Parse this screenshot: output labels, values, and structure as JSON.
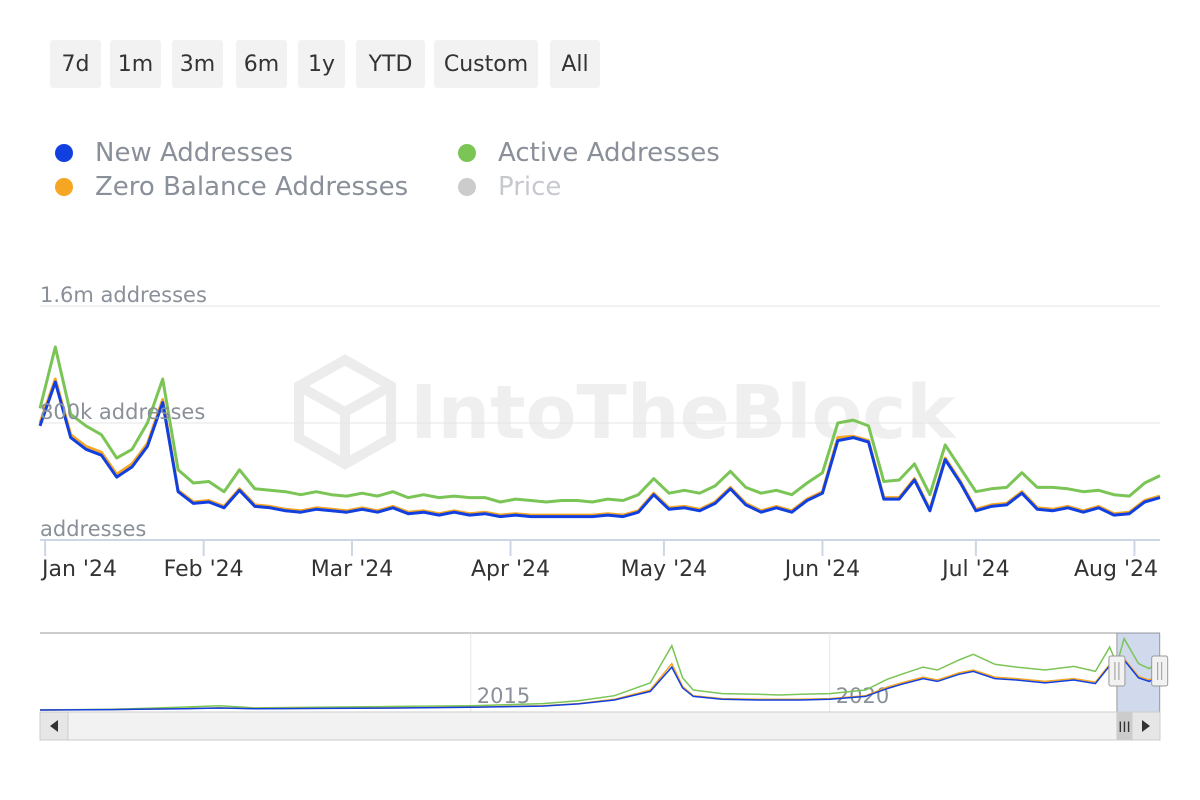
{
  "range_buttons": [
    "7d",
    "1m",
    "3m",
    "6m",
    "1y",
    "YTD",
    "Custom",
    "All"
  ],
  "legend": [
    {
      "label": "New Addresses",
      "color": "#1240e0",
      "visible": true
    },
    {
      "label": "Active Addresses",
      "color": "#7ac555",
      "visible": true
    },
    {
      "label": "Zero Balance Addresses",
      "color": "#f5a623",
      "visible": true
    },
    {
      "label": "Price",
      "color": "#cccccc",
      "visible": false
    }
  ],
  "watermark": "IntoTheBlock",
  "chart_data": {
    "type": "line",
    "y_tick_labels": [
      "1.6m addresses",
      "800k addresses",
      "addresses"
    ],
    "y_ticks": [
      1600000,
      800000,
      0
    ],
    "ylim": [
      0,
      1600000
    ],
    "x_tick_labels": [
      "Jan '24",
      "Feb '24",
      "Mar '24",
      "Apr '24",
      "May '24",
      "Jun '24",
      "Jul '24",
      "Aug '24"
    ],
    "x_ticks": [
      "2024-01-01",
      "2024-02-01",
      "2024-03-01",
      "2024-04-01",
      "2024-05-01",
      "2024-06-01",
      "2024-07-01",
      "2024-08-01"
    ],
    "xlim": [
      "2023-12-31",
      "2024-08-06"
    ],
    "x": [
      "2023-12-31",
      "2024-01-03",
      "2024-01-06",
      "2024-01-09",
      "2024-01-12",
      "2024-01-15",
      "2024-01-18",
      "2024-01-21",
      "2024-01-24",
      "2024-01-27",
      "2024-01-30",
      "2024-02-02",
      "2024-02-05",
      "2024-02-08",
      "2024-02-11",
      "2024-02-14",
      "2024-02-17",
      "2024-02-20",
      "2024-02-23",
      "2024-02-26",
      "2024-02-29",
      "2024-03-03",
      "2024-03-06",
      "2024-03-09",
      "2024-03-12",
      "2024-03-15",
      "2024-03-18",
      "2024-03-21",
      "2024-03-24",
      "2024-03-27",
      "2024-03-30",
      "2024-04-02",
      "2024-04-05",
      "2024-04-08",
      "2024-04-11",
      "2024-04-14",
      "2024-04-17",
      "2024-04-20",
      "2024-04-23",
      "2024-04-26",
      "2024-04-29",
      "2024-05-02",
      "2024-05-05",
      "2024-05-08",
      "2024-05-11",
      "2024-05-14",
      "2024-05-17",
      "2024-05-20",
      "2024-05-23",
      "2024-05-26",
      "2024-05-29",
      "2024-06-01",
      "2024-06-04",
      "2024-06-07",
      "2024-06-10",
      "2024-06-13",
      "2024-06-16",
      "2024-06-19",
      "2024-06-22",
      "2024-06-25",
      "2024-06-28",
      "2024-07-01",
      "2024-07-04",
      "2024-07-07",
      "2024-07-10",
      "2024-07-13",
      "2024-07-16",
      "2024-07-19",
      "2024-07-22",
      "2024-07-25",
      "2024-07-28",
      "2024-07-31",
      "2024-08-03",
      "2024-08-06"
    ],
    "series": [
      {
        "name": "Active Addresses",
        "color": "#7ac555",
        "values": [
          900000,
          1320000,
          860000,
          780000,
          720000,
          560000,
          620000,
          800000,
          1100000,
          480000,
          390000,
          400000,
          330000,
          480000,
          350000,
          340000,
          330000,
          310000,
          330000,
          310000,
          300000,
          320000,
          300000,
          330000,
          290000,
          310000,
          290000,
          300000,
          290000,
          290000,
          260000,
          280000,
          270000,
          260000,
          270000,
          270000,
          260000,
          280000,
          270000,
          310000,
          420000,
          320000,
          340000,
          320000,
          370000,
          470000,
          360000,
          320000,
          340000,
          310000,
          390000,
          460000,
          800000,
          820000,
          780000,
          400000,
          410000,
          520000,
          310000,
          650000,
          490000,
          330000,
          350000,
          360000,
          460000,
          360000,
          360000,
          350000,
          330000,
          340000,
          310000,
          300000,
          390000,
          440000
        ]
      },
      {
        "name": "Zero Balance Addresses",
        "color": "#f5a623",
        "values": [
          800000,
          1100000,
          720000,
          640000,
          600000,
          450000,
          520000,
          660000,
          960000,
          340000,
          260000,
          270000,
          230000,
          350000,
          240000,
          230000,
          210000,
          200000,
          220000,
          210000,
          200000,
          220000,
          200000,
          230000,
          190000,
          200000,
          180000,
          200000,
          180000,
          190000,
          170000,
          180000,
          170000,
          170000,
          170000,
          170000,
          170000,
          180000,
          170000,
          200000,
          320000,
          220000,
          230000,
          210000,
          260000,
          360000,
          250000,
          200000,
          230000,
          200000,
          280000,
          330000,
          700000,
          710000,
          680000,
          290000,
          290000,
          420000,
          210000,
          560000,
          400000,
          210000,
          240000,
          250000,
          330000,
          220000,
          210000,
          230000,
          200000,
          230000,
          180000,
          190000,
          270000,
          300000
        ]
      },
      {
        "name": "New Addresses",
        "color": "#1240e0",
        "values": [
          780000,
          1080000,
          700000,
          620000,
          580000,
          430000,
          500000,
          640000,
          940000,
          330000,
          250000,
          260000,
          220000,
          340000,
          230000,
          220000,
          200000,
          190000,
          210000,
          200000,
          190000,
          210000,
          190000,
          220000,
          180000,
          190000,
          170000,
          190000,
          170000,
          180000,
          160000,
          170000,
          160000,
          160000,
          160000,
          160000,
          160000,
          170000,
          160000,
          190000,
          310000,
          210000,
          220000,
          200000,
          250000,
          350000,
          240000,
          190000,
          220000,
          190000,
          270000,
          320000,
          680000,
          700000,
          670000,
          280000,
          280000,
          410000,
          200000,
          550000,
          390000,
          200000,
          230000,
          240000,
          320000,
          210000,
          200000,
          220000,
          190000,
          220000,
          170000,
          180000,
          260000,
          290000
        ]
      }
    ],
    "grid": true,
    "legend_position": "top-left"
  },
  "navigator": {
    "labels": [
      "2015",
      "2020"
    ],
    "label_years": [
      2015,
      2020
    ],
    "xlim": [
      2009.0,
      2024.6
    ],
    "selection": [
      "2024-01-01",
      "2024-08-06"
    ],
    "x": [
      2009.0,
      2010.0,
      2011.0,
      2011.5,
      2012.0,
      2013.0,
      2014.0,
      2015.0,
      2016.0,
      2016.5,
      2017.0,
      2017.5,
      2017.8,
      2017.95,
      2018.1,
      2018.5,
      2019.0,
      2019.3,
      2019.6,
      2020.0,
      2020.5,
      2020.8,
      2021.0,
      2021.3,
      2021.5,
      2021.8,
      2022.0,
      2022.3,
      2022.6,
      2023.0,
      2023.4,
      2023.7,
      2023.9,
      2024.0,
      2024.1,
      2024.3,
      2024.45,
      2024.6
    ],
    "series": [
      {
        "name": "Active Addresses",
        "color": "#7ac555",
        "values": [
          0,
          10000,
          40000,
          60000,
          30000,
          40000,
          50000,
          60000,
          90000,
          130000,
          200000,
          380000,
          900000,
          450000,
          280000,
          230000,
          220000,
          210000,
          220000,
          230000,
          280000,
          430000,
          500000,
          600000,
          560000,
          700000,
          780000,
          640000,
          600000,
          560000,
          610000,
          540000,
          880000,
          640000,
          1000000,
          650000,
          580000,
          700000
        ]
      },
      {
        "name": "Zero Balance Addresses",
        "color": "#f5a623",
        "values": [
          0,
          5000,
          20000,
          30000,
          20000,
          25000,
          30000,
          40000,
          60000,
          90000,
          150000,
          280000,
          650000,
          330000,
          200000,
          160000,
          150000,
          150000,
          150000,
          160000,
          200000,
          320000,
          380000,
          460000,
          420000,
          520000,
          560000,
          460000,
          440000,
          400000,
          440000,
          390000,
          640000,
          460000,
          720000,
          470000,
          420000,
          500000
        ]
      },
      {
        "name": "New Addresses",
        "color": "#1240e0",
        "values": [
          0,
          5000,
          18000,
          28000,
          18000,
          22000,
          28000,
          38000,
          55000,
          85000,
          140000,
          260000,
          600000,
          310000,
          190000,
          150000,
          140000,
          140000,
          140000,
          150000,
          190000,
          300000,
          360000,
          440000,
          400000,
          500000,
          540000,
          440000,
          420000,
          380000,
          420000,
          370000,
          620000,
          440000,
          700000,
          450000,
          400000,
          480000
        ]
      }
    ],
    "ylim": [
      0,
      1050000
    ],
    "scroll_grip": "III",
    "scroll_left_icon": "arrow-left-icon",
    "scroll_right_icon": "arrow-right-icon"
  }
}
